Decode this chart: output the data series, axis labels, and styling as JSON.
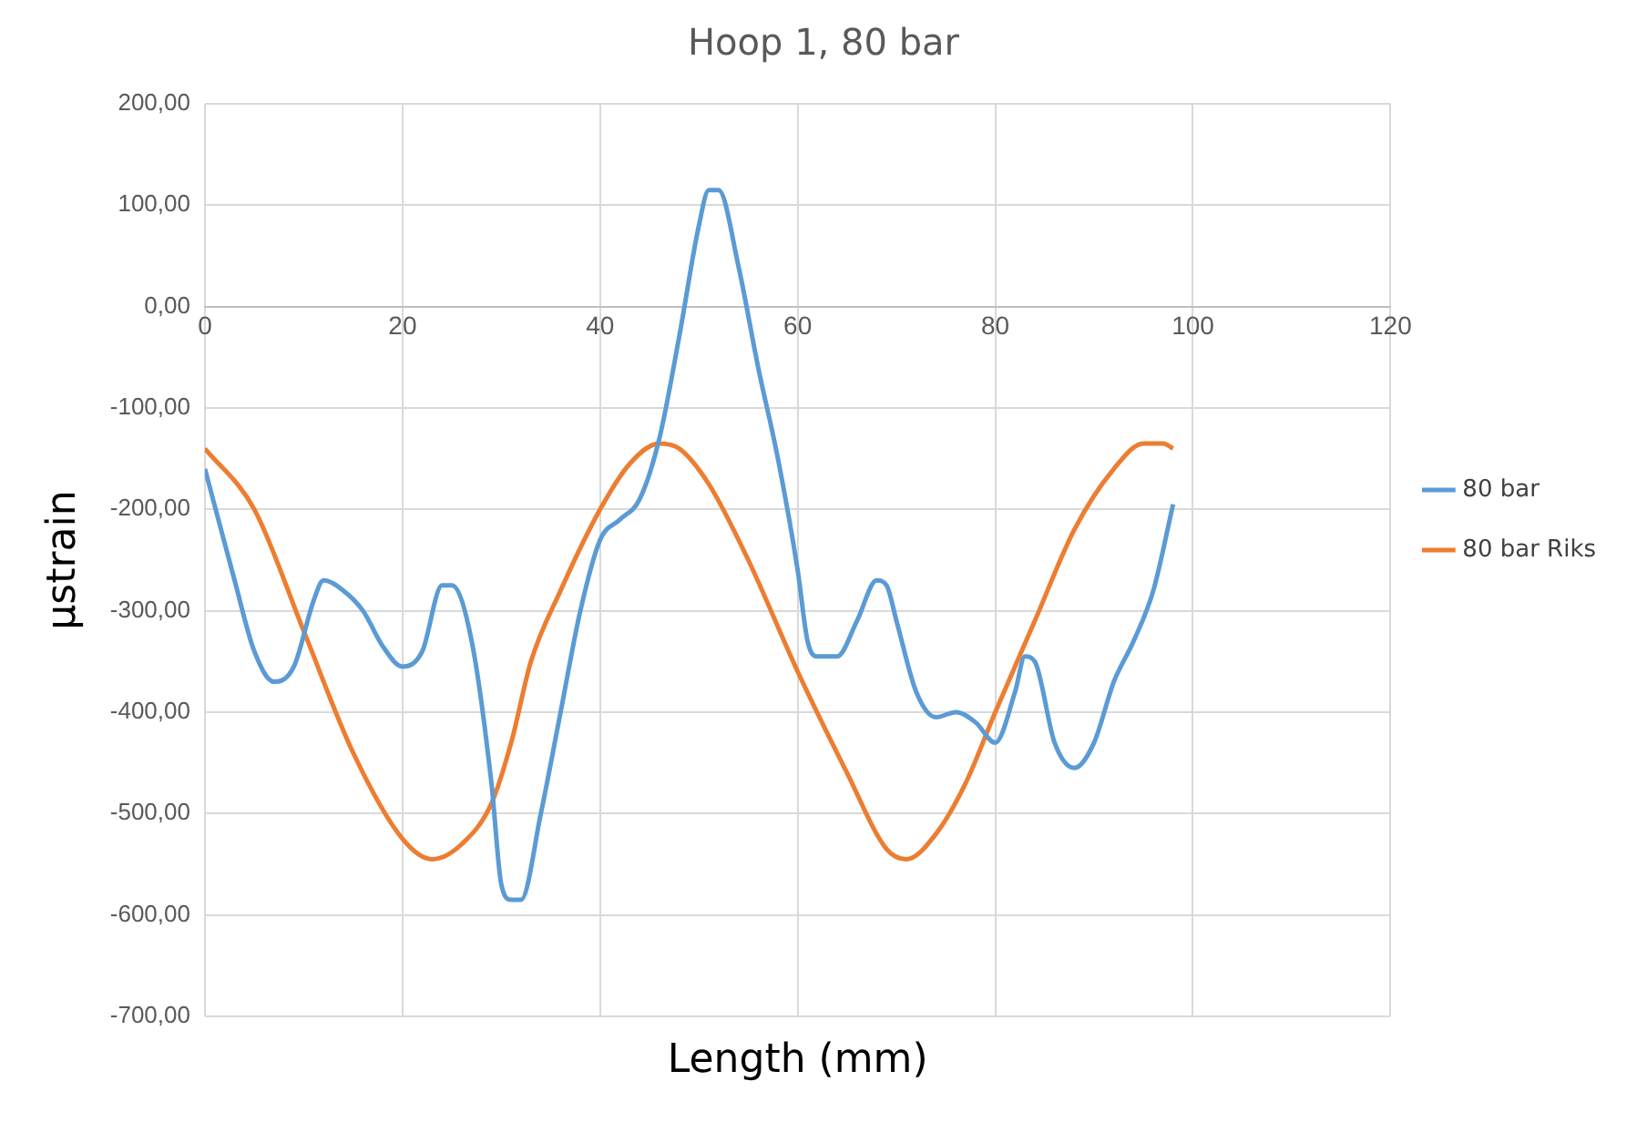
{
  "chart_data": {
    "type": "line",
    "title": "Hoop 1, 80 bar",
    "xlabel": "Length (mm)",
    "ylabel": "µstrain",
    "xlim": [
      0,
      120
    ],
    "xticks": [
      0,
      20,
      40,
      60,
      80,
      100,
      120
    ],
    "ylim": [
      -700,
      200
    ],
    "yticks": [
      {
        "value": 200,
        "label": "200,00"
      },
      {
        "value": 100,
        "label": "100,00"
      },
      {
        "value": 0,
        "label": "0,00"
      },
      {
        "value": -100,
        "label": "-100,00"
      },
      {
        "value": -200,
        "label": "-200,00"
      },
      {
        "value": -300,
        "label": "-300,00"
      },
      {
        "value": -400,
        "label": "-400,00"
      },
      {
        "value": -500,
        "label": "-500,00"
      },
      {
        "value": -600,
        "label": "-600,00"
      },
      {
        "value": -700,
        "label": "-700,00"
      }
    ],
    "grid": true,
    "legend": "right",
    "marker": "none",
    "line_style": "solid",
    "series": [
      {
        "name": "80 bar",
        "color": "#5b9bd5",
        "x": [
          0,
          3,
          5,
          7,
          9,
          11,
          12,
          14,
          16,
          18,
          20,
          22,
          24,
          25,
          27,
          29,
          30,
          31,
          32,
          34,
          36,
          38,
          40,
          42,
          44,
          46,
          48,
          50,
          51,
          52,
          54,
          56,
          58,
          60,
          61,
          62,
          64,
          66,
          68,
          69,
          70,
          72,
          74,
          76,
          78,
          80,
          82,
          83,
          84,
          86,
          88,
          90,
          92,
          94,
          96,
          98
        ],
        "values": [
          -160,
          -270,
          -340,
          -370,
          -355,
          -290,
          -270,
          -280,
          -300,
          -335,
          -355,
          -340,
          -275,
          -275,
          -330,
          -470,
          -570,
          -585,
          -585,
          -500,
          -400,
          -300,
          -230,
          -210,
          -190,
          -130,
          -30,
          80,
          115,
          115,
          40,
          -60,
          -150,
          -260,
          -330,
          -345,
          -345,
          -310,
          -270,
          -275,
          -310,
          -380,
          -405,
          -400,
          -410,
          -430,
          -380,
          -345,
          -350,
          -430,
          -455,
          -430,
          -370,
          -330,
          -280,
          -195
        ]
      },
      {
        "name": "80 bar Riks",
        "color": "#ed7d31",
        "x": [
          0,
          5,
          10,
          15,
          20,
          23,
          26,
          29,
          31,
          33,
          36,
          40,
          43,
          46,
          48,
          51,
          55,
          60,
          65,
          69,
          71,
          74,
          77,
          80,
          84,
          88,
          92,
          95,
          97,
          98
        ],
        "values": [
          -140,
          -200,
          -320,
          -440,
          -525,
          -545,
          -530,
          -490,
          -430,
          -350,
          -280,
          -200,
          -155,
          -135,
          -140,
          -175,
          -250,
          -360,
          -460,
          -535,
          -545,
          -520,
          -470,
          -400,
          -310,
          -220,
          -160,
          -135,
          -135,
          -140
        ]
      }
    ]
  }
}
